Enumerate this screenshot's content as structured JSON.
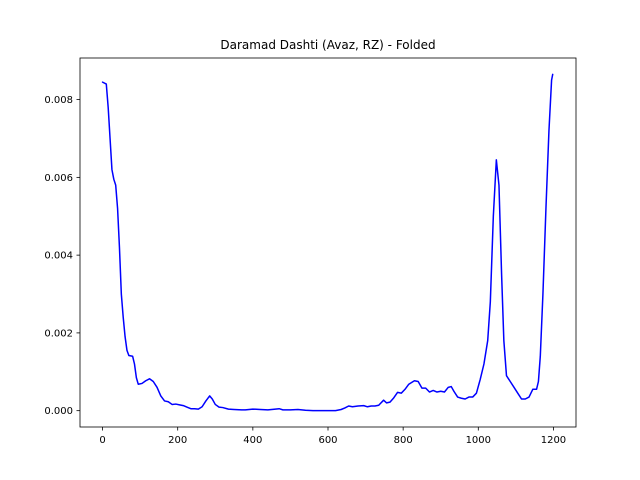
{
  "chart_data": {
    "type": "line",
    "title": "Daramad Dashti (Avaz, RZ) - Folded",
    "xlabel": "",
    "ylabel": "",
    "xlim": [
      -60,
      1260
    ],
    "ylim": [
      -0.00042,
      0.00907
    ],
    "xticks": [
      0,
      200,
      400,
      600,
      800,
      1000,
      1200
    ],
    "xtick_labels": [
      "0",
      "200",
      "400",
      "600",
      "800",
      "1000",
      "1200"
    ],
    "yticks": [
      0,
      0.002,
      0.004,
      0.006,
      0.008
    ],
    "ytick_labels": [
      "0.000",
      "0.002",
      "0.004",
      "0.006",
      "0.008"
    ],
    "grid": false,
    "series": [
      {
        "color": "#0000ff",
        "points": [
          [
            0,
            0.00845
          ],
          [
            10,
            0.0084
          ],
          [
            15,
            0.0078
          ],
          [
            20,
            0.007
          ],
          [
            25,
            0.0062
          ],
          [
            30,
            0.00595
          ],
          [
            35,
            0.0058
          ],
          [
            40,
            0.0052
          ],
          [
            45,
            0.0042
          ],
          [
            50,
            0.003
          ],
          [
            55,
            0.0024
          ],
          [
            60,
            0.0019
          ],
          [
            65,
            0.00155
          ],
          [
            70,
            0.00142
          ],
          [
            80,
            0.0014
          ],
          [
            85,
            0.0012
          ],
          [
            90,
            0.00085
          ],
          [
            95,
            0.00068
          ],
          [
            105,
            0.0007
          ],
          [
            115,
            0.00077
          ],
          [
            125,
            0.00082
          ],
          [
            135,
            0.00075
          ],
          [
            145,
            0.0006
          ],
          [
            155,
            0.00038
          ],
          [
            165,
            0.00025
          ],
          [
            175,
            0.00023
          ],
          [
            185,
            0.00016
          ],
          [
            195,
            0.00017
          ],
          [
            205,
            0.00015
          ],
          [
            215,
            0.00013
          ],
          [
            225,
            9e-05
          ],
          [
            235,
            5e-05
          ],
          [
            245,
            5e-05
          ],
          [
            255,
            4e-05
          ],
          [
            265,
            0.0001
          ],
          [
            275,
            0.00025
          ],
          [
            285,
            0.00038
          ],
          [
            292,
            0.0003
          ],
          [
            300,
            0.00016
          ],
          [
            310,
            9e-05
          ],
          [
            320,
            8e-05
          ],
          [
            335,
            4e-05
          ],
          [
            350,
            3e-05
          ],
          [
            370,
            2e-05
          ],
          [
            380,
            2e-05
          ],
          [
            400,
            4e-05
          ],
          [
            420,
            3e-05
          ],
          [
            440,
            2e-05
          ],
          [
            460,
            4e-05
          ],
          [
            470,
            5e-05
          ],
          [
            480,
            2e-05
          ],
          [
            500,
            2e-05
          ],
          [
            520,
            3e-05
          ],
          [
            540,
            1e-05
          ],
          [
            560,
            0.0
          ],
          [
            580,
            0.0
          ],
          [
            600,
            0.0
          ],
          [
            620,
            0.0
          ],
          [
            635,
            3e-05
          ],
          [
            645,
            7e-05
          ],
          [
            655,
            0.00012
          ],
          [
            665,
            0.0001
          ],
          [
            680,
            0.00012
          ],
          [
            695,
            0.00013
          ],
          [
            705,
            0.0001
          ],
          [
            715,
            0.00012
          ],
          [
            725,
            0.00012
          ],
          [
            735,
            0.00014
          ],
          [
            748,
            0.00027
          ],
          [
            756,
            0.0002
          ],
          [
            765,
            0.00022
          ],
          [
            775,
            0.00033
          ],
          [
            785,
            0.00047
          ],
          [
            795,
            0.00045
          ],
          [
            805,
            0.00055
          ],
          [
            815,
            0.00068
          ],
          [
            830,
            0.00077
          ],
          [
            840,
            0.00075
          ],
          [
            850,
            0.00058
          ],
          [
            860,
            0.00058
          ],
          [
            870,
            0.00048
          ],
          [
            880,
            0.00052
          ],
          [
            890,
            0.00048
          ],
          [
            900,
            0.0005
          ],
          [
            910,
            0.00048
          ],
          [
            920,
            0.0006
          ],
          [
            928,
            0.00062
          ],
          [
            935,
            0.0005
          ],
          [
            945,
            0.00035
          ],
          [
            955,
            0.00032
          ],
          [
            965,
            0.0003
          ],
          [
            975,
            0.00035
          ],
          [
            985,
            0.00035
          ],
          [
            995,
            0.00045
          ],
          [
            1005,
            0.0008
          ],
          [
            1015,
            0.0012
          ],
          [
            1025,
            0.0018
          ],
          [
            1032,
            0.0028
          ],
          [
            1040,
            0.005
          ],
          [
            1048,
            0.00645
          ],
          [
            1055,
            0.0058
          ],
          [
            1062,
            0.0035
          ],
          [
            1068,
            0.0018
          ],
          [
            1075,
            0.0009
          ],
          [
            1085,
            0.00075
          ],
          [
            1095,
            0.0006
          ],
          [
            1105,
            0.00045
          ],
          [
            1115,
            0.0003
          ],
          [
            1125,
            0.0003
          ],
          [
            1135,
            0.00035
          ],
          [
            1145,
            0.00055
          ],
          [
            1155,
            0.00055
          ],
          [
            1160,
            0.00075
          ],
          [
            1165,
            0.0014
          ],
          [
            1172,
            0.003
          ],
          [
            1180,
            0.0052
          ],
          [
            1188,
            0.0072
          ],
          [
            1195,
            0.0085
          ],
          [
            1198,
            0.00865
          ]
        ]
      }
    ]
  }
}
